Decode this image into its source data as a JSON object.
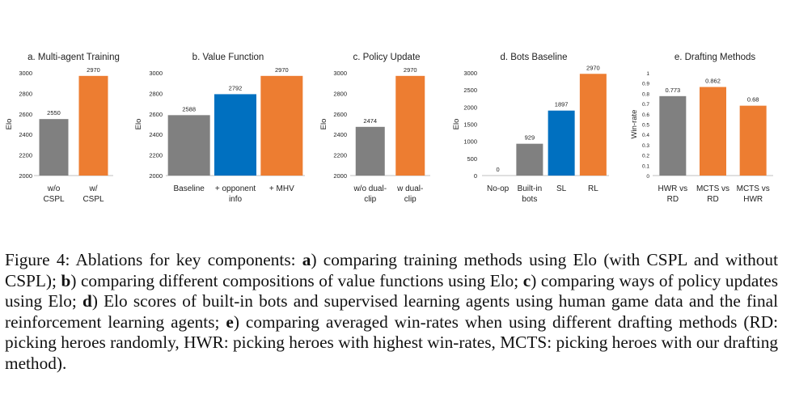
{
  "figure": {
    "caption_label": "Figure 4: Ablations for key components: ",
    "caption_parts": [
      {
        "letter": "a",
        "text": ") comparing training methods using Elo (with CSPL and without CSPL); "
      },
      {
        "letter": "b",
        "text": ") comparing different compositions of value functions using Elo; "
      },
      {
        "letter": "c",
        "text": ") comparing ways of policy updates using Elo; "
      },
      {
        "letter": "d",
        "text": ") Elo scores of built-in bots and supervised learning agents using human game data and the final reinforcement learning agents; "
      },
      {
        "letter": "e",
        "text": ") comparing averaged win-rates when using different drafting methods (RD: picking heroes randomly, HWR: picking heroes with highest win-rates, MCTS: picking heroes with our drafting method)."
      }
    ]
  },
  "colors": {
    "gray": "#808080",
    "orange": "#ED7D31",
    "blue": "#0070C0"
  },
  "chart_data": [
    {
      "type": "bar",
      "title": "a. Multi-agent Training",
      "ylabel": "Elo",
      "ylim": [
        2000,
        3000
      ],
      "yticks": [
        "2000",
        "2200",
        "2400",
        "2600",
        "2800",
        "3000"
      ],
      "categories": [
        [
          "w/o",
          "CSPL"
        ],
        [
          "w/",
          "CSPL"
        ]
      ],
      "values": [
        2550,
        2970
      ],
      "value_labels": [
        "2550",
        "2970"
      ],
      "bar_colors": [
        "#808080",
        "#ED7D31"
      ]
    },
    {
      "type": "bar",
      "title": "b. Value Function",
      "ylabel": "Elo",
      "ylim": [
        2000,
        3000
      ],
      "yticks": [
        "2000",
        "2200",
        "2400",
        "2600",
        "2800",
        "3000"
      ],
      "categories": [
        [
          "Baseline"
        ],
        [
          "+ opponent",
          "info"
        ],
        [
          "+ MHV"
        ]
      ],
      "values": [
        2588,
        2792,
        2970
      ],
      "value_labels": [
        "2588",
        "2792",
        "2970"
      ],
      "bar_colors": [
        "#808080",
        "#0070C0",
        "#ED7D31"
      ]
    },
    {
      "type": "bar",
      "title": "c. Policy Update",
      "ylabel": "Elo",
      "ylim": [
        2000,
        3000
      ],
      "yticks": [
        "2000",
        "2200",
        "2400",
        "2600",
        "2800",
        "3000"
      ],
      "categories": [
        [
          "w/o dual-",
          "clip"
        ],
        [
          "w dual-",
          "clip"
        ]
      ],
      "values": [
        2474,
        2970
      ],
      "value_labels": [
        "2474",
        "2970"
      ],
      "bar_colors": [
        "#808080",
        "#ED7D31"
      ]
    },
    {
      "type": "bar",
      "title": "d. Bots Baseline",
      "ylabel": "Elo",
      "ylim": [
        0,
        3000
      ],
      "yticks": [
        "0",
        "500",
        "1000",
        "1500",
        "2000",
        "2500",
        "3000"
      ],
      "categories": [
        [
          "No-op"
        ],
        [
          "Built-in",
          "bots"
        ],
        [
          "SL"
        ],
        [
          "RL"
        ]
      ],
      "values": [
        0,
        929,
        1897,
        2970
      ],
      "value_labels": [
        "0",
        "929",
        "1897",
        "2970"
      ],
      "bar_colors": [
        "#808080",
        "#808080",
        "#0070C0",
        "#ED7D31"
      ]
    },
    {
      "type": "bar",
      "title": "e. Drafting Methods",
      "ylabel": "Win-rate",
      "ylim": [
        0,
        1
      ],
      "yticks": [
        "0",
        "0.1",
        "0.2",
        "0.3",
        "0.4",
        "0.5",
        "0.6",
        "0.7",
        "0.8",
        "0.9",
        "1"
      ],
      "categories": [
        [
          "HWR vs",
          "RD"
        ],
        [
          "MCTS vs",
          "RD"
        ],
        [
          "MCTS vs",
          "HWR"
        ]
      ],
      "values": [
        0.773,
        0.862,
        0.68
      ],
      "value_labels": [
        "0.773",
        "0.862",
        "0.68"
      ],
      "bar_colors": [
        "#808080",
        "#ED7D31",
        "#ED7D31"
      ]
    }
  ]
}
